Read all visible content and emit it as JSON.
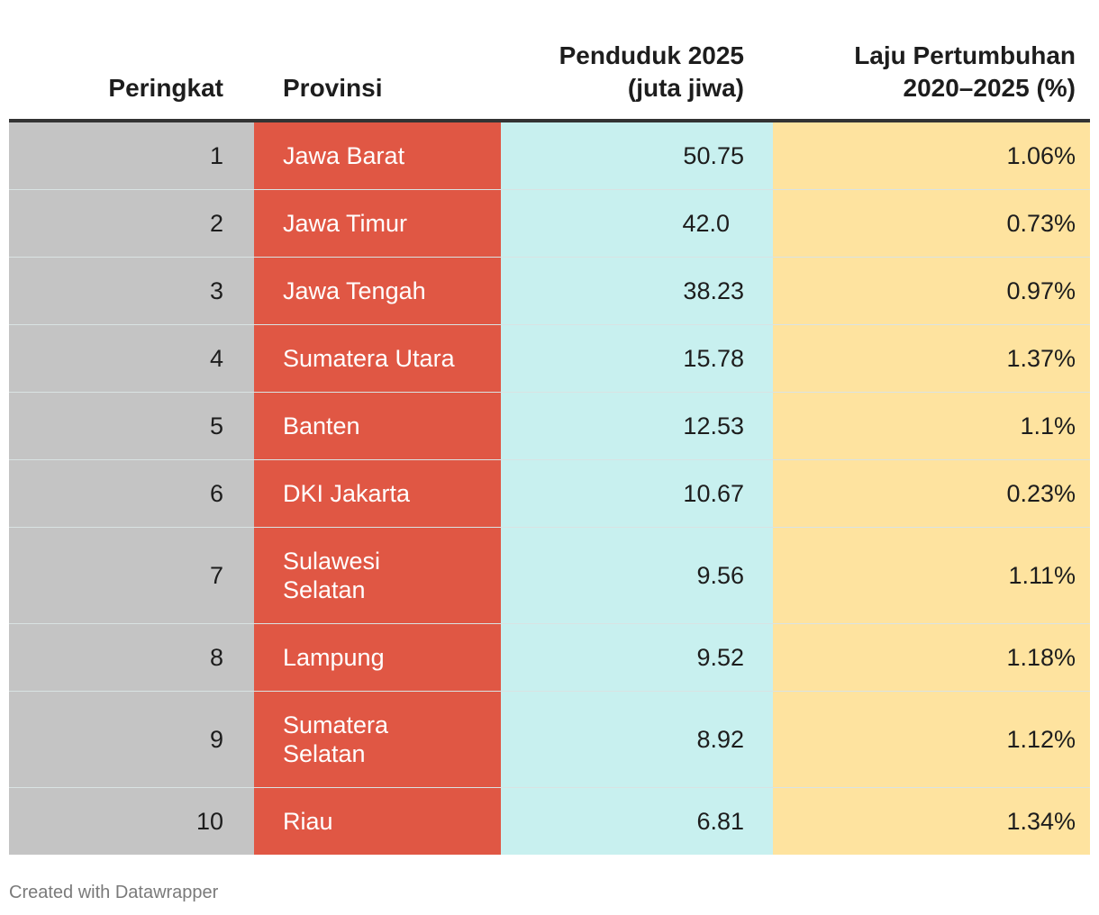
{
  "colors": {
    "rank_bg": "#c4c4c4",
    "province_bg": "#e05744",
    "population_bg": "#c8f0ef",
    "growth_bg": "#fee39f"
  },
  "chart_data": {
    "type": "table",
    "columns": [
      "Peringkat",
      "Provinsi",
      "Penduduk 2025\n(juta jiwa)",
      "Laju Pertumbuhan\n2020–2025 (%)"
    ],
    "rows": [
      {
        "rank": "1",
        "province": "Jawa Barat",
        "population": "50.75",
        "growth": "1.06%"
      },
      {
        "rank": "2",
        "province": "Jawa Timur",
        "population": "42.0",
        "growth": "0.73%"
      },
      {
        "rank": "3",
        "province": "Jawa Tengah",
        "population": "38.23",
        "growth": "0.97%"
      },
      {
        "rank": "4",
        "province": "Sumatera Utara",
        "population": "15.78",
        "growth": "1.37%"
      },
      {
        "rank": "5",
        "province": "Banten",
        "population": "12.53",
        "growth": "1.1%"
      },
      {
        "rank": "6",
        "province": "DKI Jakarta",
        "population": "10.67",
        "growth": "0.23%"
      },
      {
        "rank": "7",
        "province": "Sulawesi Selatan",
        "population": "9.56",
        "growth": "1.11%"
      },
      {
        "rank": "8",
        "province": "Lampung",
        "population": "9.52",
        "growth": "1.18%"
      },
      {
        "rank": "9",
        "province": "Sumatera Selatan",
        "population": "8.92",
        "growth": "1.12%"
      },
      {
        "rank": "10",
        "province": "Riau",
        "population": "6.81",
        "growth": "1.34%"
      }
    ]
  },
  "footer": {
    "credit": "Created with Datawrapper"
  }
}
